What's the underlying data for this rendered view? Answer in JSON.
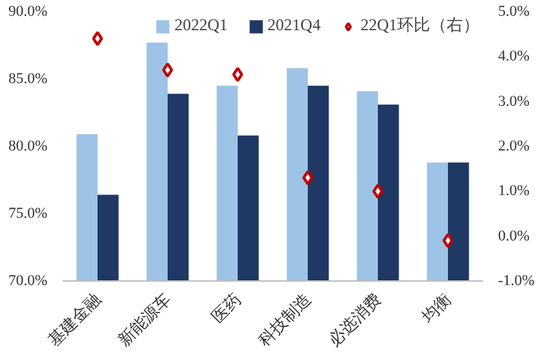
{
  "chart_data": {
    "type": "bar",
    "categories": [
      "基建金融",
      "新能源车",
      "医药",
      "科技制造",
      "必选消费",
      "均衡"
    ],
    "series": [
      {
        "name": "2022Q1",
        "color": "#9dc3e6",
        "values": [
          80.9,
          87.7,
          84.5,
          85.8,
          84.1,
          78.8
        ]
      },
      {
        "name": "2021Q4",
        "color": "#1f3864",
        "values": [
          76.4,
          83.9,
          80.8,
          84.5,
          83.1,
          78.8
        ]
      },
      {
        "name": "22Q1环比（右）",
        "type": "scatter",
        "axis": "y2",
        "marker": "diamond",
        "color": "#c00000",
        "values": [
          4.4,
          3.7,
          3.6,
          1.3,
          1.0,
          -0.1
        ]
      }
    ],
    "ylim": [
      70,
      90
    ],
    "yticks": [
      {
        "value": 70,
        "label": "70.0%"
      },
      {
        "value": 75,
        "label": "75.0%"
      },
      {
        "value": 80,
        "label": "80.0%"
      },
      {
        "value": 85,
        "label": "85.0%"
      },
      {
        "value": 90,
        "label": "90.0%"
      }
    ],
    "y2lim": [
      -1,
      5
    ],
    "y2ticks": [
      {
        "value": -1,
        "label": "-1.0%"
      },
      {
        "value": 0,
        "label": "0.0%"
      },
      {
        "value": 1,
        "label": "1.0%"
      },
      {
        "value": 2,
        "label": "2.0%"
      },
      {
        "value": 3,
        "label": "3.0%"
      },
      {
        "value": 4,
        "label": "4.0%"
      },
      {
        "value": 5,
        "label": "5.0%"
      }
    ],
    "grid": false,
    "legend": "top"
  }
}
